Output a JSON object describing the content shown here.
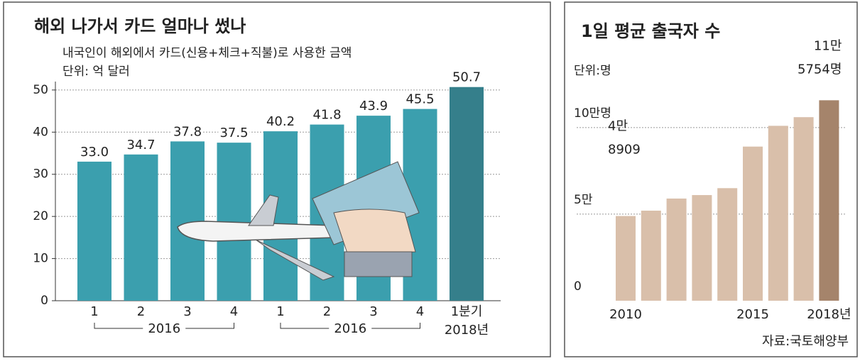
{
  "chart_data": [
    {
      "type": "bar",
      "title": "해외 나가서 카드 얼마나 썼나",
      "subtitle": "내국인이 해외에서 카드(신용+체크+직불)로 사용한 금액",
      "unit": "단위: 억 달러",
      "categories": [
        "1",
        "2",
        "3",
        "4",
        "1",
        "2",
        "3",
        "4",
        "1분기"
      ],
      "groups": [
        "2016",
        "2016",
        "2018년"
      ],
      "values": [
        33.0,
        34.7,
        37.8,
        37.5,
        40.2,
        41.8,
        43.9,
        45.5,
        50.7
      ],
      "value_labels": [
        "33.0",
        "34.7",
        "37.8",
        "37.5",
        "40.2",
        "41.8",
        "43.9",
        "45.5",
        "50.7"
      ],
      "colors": [
        "#3b9fae",
        "#3b9fae",
        "#3b9fae",
        "#3b9fae",
        "#3b9fae",
        "#3b9fae",
        "#3b9fae",
        "#3b9fae",
        "#357f8b"
      ],
      "ylim": [
        0,
        52
      ],
      "yticks": [
        0,
        10,
        20,
        30,
        40,
        50
      ],
      "grid": true
    },
    {
      "type": "bar",
      "title": "1일 평균 출국자 수",
      "unit": "단위:명",
      "categories": [
        "2010",
        null,
        null,
        null,
        null,
        "2015",
        null,
        null,
        "2018년"
      ],
      "values": [
        48909,
        52000,
        59000,
        61000,
        65000,
        89000,
        101000,
        106000,
        115754
      ],
      "value_labels": [
        [
          "4만",
          "8909"
        ],
        null,
        null,
        null,
        null,
        null,
        null,
        null,
        [
          "11만",
          "5754명"
        ]
      ],
      "colors": [
        "#d9bfaa",
        "#d9bfaa",
        "#d9bfaa",
        "#d9bfaa",
        "#d9bfaa",
        "#d9bfaa",
        "#d9bfaa",
        "#d9bfaa",
        "#a5846b"
      ],
      "ylim": [
        0,
        120000
      ],
      "yticks": [
        {
          "value": 0,
          "label": "0"
        },
        {
          "value": 50000,
          "label": "5만"
        },
        {
          "value": 100000,
          "label": "10만명"
        }
      ],
      "grid": true,
      "source": "자료:국토해양부"
    }
  ]
}
